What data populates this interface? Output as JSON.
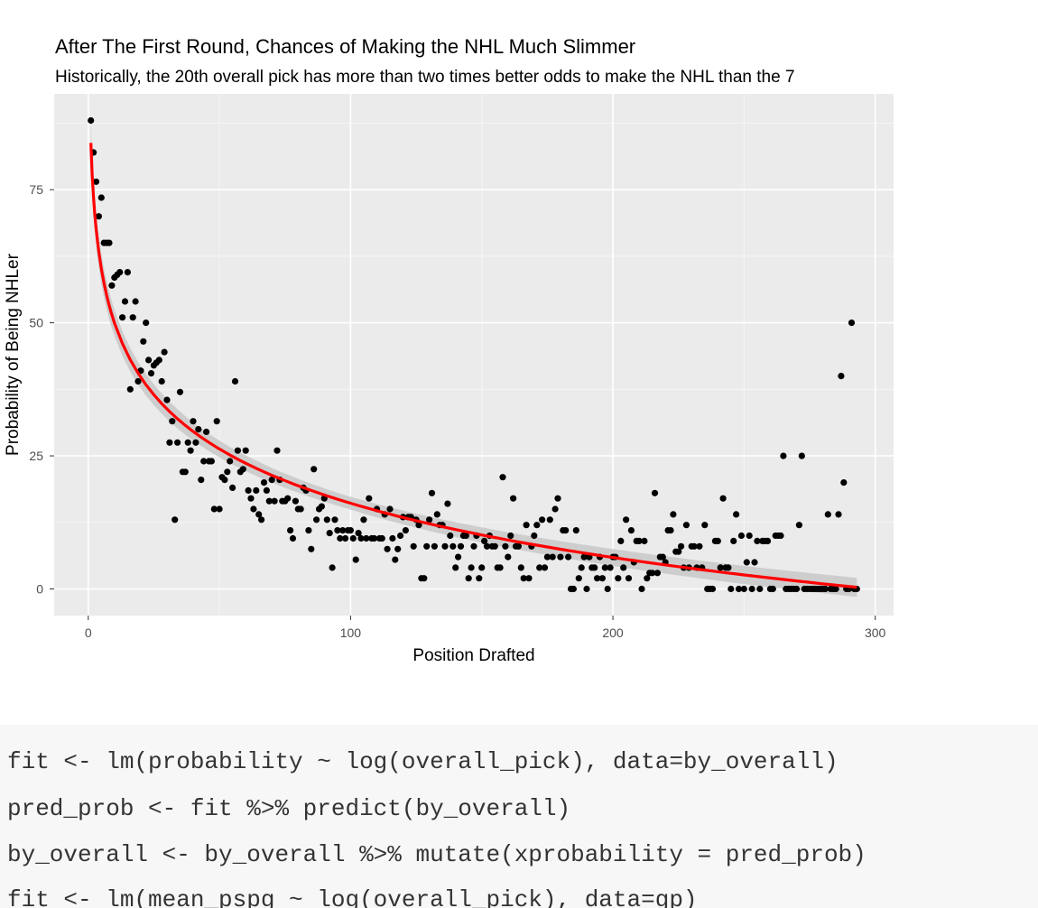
{
  "chart_data": {
    "type": "scatter",
    "title": "After The First Round, Chances of Making the NHL Much Slimmer",
    "subtitle": "Historically, the 20th overall pick has more than two times better odds to make the NHL than the 7",
    "xlabel": "Position Drafted",
    "ylabel": "Probability of Being NHLer",
    "xlim": [
      -13,
      307
    ],
    "ylim": [
      -5,
      93
    ],
    "x_ticks": [
      0,
      100,
      200,
      300
    ],
    "y_ticks": [
      0,
      25,
      50,
      75
    ],
    "grid": true,
    "background": "#ebebeb",
    "point_color": "#000000",
    "fit_color": "#ff0000",
    "fit_band_color": "#c8c8c8",
    "fit": {
      "model": "lm(y ~ log(x))",
      "intercept": 83.8,
      "slope": -14.7,
      "x_range": [
        1,
        293
      ]
    },
    "series": [
      {
        "points": [
          [
            1,
            88
          ],
          [
            2,
            82
          ],
          [
            3,
            76.5
          ],
          [
            4,
            70
          ],
          [
            5,
            73.5
          ],
          [
            6,
            65
          ],
          [
            7,
            65
          ],
          [
            8,
            65
          ],
          [
            9,
            57
          ],
          [
            10,
            58.5
          ],
          [
            11,
            59
          ],
          [
            12,
            59.5
          ],
          [
            13,
            51
          ],
          [
            14,
            54
          ],
          [
            15,
            59.5
          ],
          [
            16,
            37.5
          ],
          [
            17,
            51
          ],
          [
            18,
            54
          ],
          [
            19,
            39
          ],
          [
            20,
            41
          ],
          [
            21,
            46.5
          ],
          [
            22,
            50
          ],
          [
            23,
            43
          ],
          [
            24,
            40.5
          ],
          [
            25,
            42
          ],
          [
            26,
            42.5
          ],
          [
            27,
            43
          ],
          [
            28,
            39
          ],
          [
            29,
            44.5
          ],
          [
            30,
            35.5
          ],
          [
            31,
            27.5
          ],
          [
            32,
            31.5
          ],
          [
            33,
            13
          ],
          [
            34,
            27.5
          ],
          [
            35,
            37
          ],
          [
            36,
            22
          ],
          [
            37,
            22
          ],
          [
            38,
            27.5
          ],
          [
            39,
            26
          ],
          [
            40,
            31.5
          ],
          [
            41,
            27.5
          ],
          [
            42,
            30
          ],
          [
            43,
            20.5
          ],
          [
            44,
            24
          ],
          [
            45,
            29.5
          ],
          [
            46,
            24
          ],
          [
            47,
            24
          ],
          [
            48,
            15
          ],
          [
            49,
            31.5
          ],
          [
            50,
            15
          ],
          [
            51,
            21
          ],
          [
            52,
            20.5
          ],
          [
            53,
            22
          ],
          [
            54,
            24
          ],
          [
            55,
            19
          ],
          [
            56,
            39
          ],
          [
            57,
            26
          ],
          [
            58,
            22
          ],
          [
            59,
            22.5
          ],
          [
            60,
            26
          ],
          [
            61,
            18.5
          ],
          [
            62,
            17
          ],
          [
            63,
            15
          ],
          [
            64,
            18.5
          ],
          [
            65,
            14
          ],
          [
            66,
            13
          ],
          [
            67,
            20
          ],
          [
            68,
            18.5
          ],
          [
            69,
            16.5
          ],
          [
            70,
            20.5
          ],
          [
            71,
            16.5
          ],
          [
            72,
            26
          ],
          [
            73,
            20.5
          ],
          [
            74,
            16.5
          ],
          [
            75,
            16.5
          ],
          [
            76,
            17
          ],
          [
            77,
            11
          ],
          [
            78,
            9.5
          ],
          [
            79,
            16.5
          ],
          [
            80,
            15
          ],
          [
            81,
            15
          ],
          [
            82,
            19
          ],
          [
            83,
            18.5
          ],
          [
            84,
            11
          ],
          [
            85,
            7.5
          ],
          [
            86,
            22.5
          ],
          [
            87,
            13
          ],
          [
            88,
            15
          ],
          [
            89,
            15.5
          ],
          [
            90,
            17
          ],
          [
            91,
            13
          ],
          [
            92,
            10.5
          ],
          [
            93,
            4
          ],
          [
            94,
            13
          ],
          [
            95,
            11
          ],
          [
            96,
            9.5
          ],
          [
            97,
            11
          ],
          [
            98,
            9.5
          ],
          [
            99,
            11
          ],
          [
            100,
            11
          ],
          [
            101,
            9.5
          ],
          [
            102,
            5.5
          ],
          [
            103,
            10.5
          ],
          [
            104,
            9.5
          ],
          [
            105,
            13
          ],
          [
            106,
            9.5
          ],
          [
            107,
            17
          ],
          [
            108,
            9.5
          ],
          [
            109,
            9.5
          ],
          [
            110,
            15
          ],
          [
            111,
            9.5
          ],
          [
            112,
            9.5
          ],
          [
            113,
            14
          ],
          [
            114,
            7.5
          ],
          [
            115,
            15
          ],
          [
            116,
            9.5
          ],
          [
            117,
            5.5
          ],
          [
            118,
            7.5
          ],
          [
            119,
            10
          ],
          [
            120,
            13.5
          ],
          [
            121,
            11
          ],
          [
            122,
            13.5
          ],
          [
            123,
            13.5
          ],
          [
            124,
            8
          ],
          [
            125,
            13
          ],
          [
            126,
            12
          ],
          [
            127,
            2
          ],
          [
            128,
            2
          ],
          [
            129,
            8
          ],
          [
            130,
            13
          ],
          [
            131,
            18
          ],
          [
            132,
            8
          ],
          [
            133,
            14
          ],
          [
            134,
            12
          ],
          [
            135,
            12
          ],
          [
            136,
            8
          ],
          [
            137,
            16
          ],
          [
            138,
            10
          ],
          [
            139,
            8
          ],
          [
            140,
            4
          ],
          [
            141,
            6
          ],
          [
            142,
            8
          ],
          [
            143,
            10
          ],
          [
            144,
            10
          ],
          [
            145,
            2
          ],
          [
            146,
            4
          ],
          [
            147,
            8
          ],
          [
            148,
            10
          ],
          [
            149,
            2
          ],
          [
            150,
            4
          ],
          [
            151,
            9
          ],
          [
            152,
            8
          ],
          [
            153,
            10
          ],
          [
            154,
            8
          ],
          [
            155,
            8
          ],
          [
            156,
            4
          ],
          [
            157,
            4
          ],
          [
            158,
            21
          ],
          [
            159,
            8
          ],
          [
            160,
            6
          ],
          [
            161,
            10
          ],
          [
            162,
            17
          ],
          [
            163,
            8
          ],
          [
            164,
            8
          ],
          [
            165,
            4
          ],
          [
            166,
            2
          ],
          [
            167,
            12
          ],
          [
            168,
            2
          ],
          [
            169,
            8
          ],
          [
            170,
            10
          ],
          [
            171,
            12
          ],
          [
            172,
            4
          ],
          [
            173,
            13
          ],
          [
            174,
            4
          ],
          [
            175,
            6
          ],
          [
            176,
            13
          ],
          [
            177,
            6
          ],
          [
            178,
            15
          ],
          [
            179,
            17
          ],
          [
            180,
            6
          ],
          [
            181,
            11
          ],
          [
            182,
            11
          ],
          [
            183,
            6
          ],
          [
            184,
            0
          ],
          [
            185,
            0
          ],
          [
            186,
            11
          ],
          [
            187,
            2
          ],
          [
            188,
            4
          ],
          [
            189,
            6
          ],
          [
            190,
            0
          ],
          [
            191,
            6
          ],
          [
            192,
            4
          ],
          [
            193,
            4
          ],
          [
            194,
            2
          ],
          [
            195,
            6
          ],
          [
            196,
            2
          ],
          [
            197,
            4
          ],
          [
            198,
            0
          ],
          [
            199,
            4
          ],
          [
            200,
            6
          ],
          [
            201,
            6
          ],
          [
            202,
            2
          ],
          [
            203,
            9
          ],
          [
            204,
            4
          ],
          [
            205,
            13
          ],
          [
            206,
            2
          ],
          [
            207,
            11
          ],
          [
            208,
            5
          ],
          [
            209,
            9
          ],
          [
            210,
            9
          ],
          [
            211,
            0
          ],
          [
            212,
            9
          ],
          [
            213,
            2
          ],
          [
            214,
            3
          ],
          [
            215,
            3
          ],
          [
            216,
            18
          ],
          [
            217,
            3
          ],
          [
            218,
            6
          ],
          [
            219,
            6
          ],
          [
            220,
            5
          ],
          [
            221,
            11
          ],
          [
            222,
            11
          ],
          [
            223,
            14
          ],
          [
            224,
            7
          ],
          [
            225,
            7
          ],
          [
            226,
            8
          ],
          [
            227,
            4
          ],
          [
            228,
            12
          ],
          [
            229,
            4
          ],
          [
            230,
            8
          ],
          [
            231,
            8
          ],
          [
            232,
            4
          ],
          [
            233,
            8
          ],
          [
            234,
            4
          ],
          [
            235,
            12
          ],
          [
            236,
            0
          ],
          [
            237,
            0
          ],
          [
            238,
            0
          ],
          [
            239,
            9
          ],
          [
            240,
            9
          ],
          [
            241,
            4
          ],
          [
            242,
            17
          ],
          [
            243,
            4
          ],
          [
            244,
            4
          ],
          [
            245,
            0
          ],
          [
            246,
            9
          ],
          [
            247,
            14
          ],
          [
            248,
            0
          ],
          [
            249,
            10
          ],
          [
            250,
            0
          ],
          [
            251,
            5
          ],
          [
            252,
            10
          ],
          [
            253,
            0
          ],
          [
            254,
            5
          ],
          [
            255,
            9
          ],
          [
            256,
            0
          ],
          [
            257,
            9
          ],
          [
            258,
            9
          ],
          [
            259,
            9
          ],
          [
            260,
            0
          ],
          [
            261,
            0
          ],
          [
            262,
            10
          ],
          [
            263,
            10
          ],
          [
            264,
            10
          ],
          [
            265,
            25
          ],
          [
            266,
            0
          ],
          [
            267,
            0
          ],
          [
            268,
            0
          ],
          [
            269,
            0
          ],
          [
            270,
            0
          ],
          [
            271,
            12
          ],
          [
            272,
            25
          ],
          [
            273,
            0
          ],
          [
            274,
            0
          ],
          [
            275,
            0
          ],
          [
            276,
            0
          ],
          [
            277,
            0
          ],
          [
            278,
            0
          ],
          [
            279,
            0
          ],
          [
            280,
            0
          ],
          [
            281,
            0
          ],
          [
            282,
            14
          ],
          [
            283,
            0
          ],
          [
            284,
            0
          ],
          [
            285,
            0
          ],
          [
            286,
            14
          ],
          [
            287,
            40
          ],
          [
            288,
            20
          ],
          [
            289,
            0
          ],
          [
            290,
            0
          ],
          [
            291,
            50
          ],
          [
            292,
            0
          ],
          [
            293,
            0
          ]
        ]
      }
    ]
  },
  "code": {
    "lines": [
      "fit <- lm(probability ~ log(overall_pick), data=by_overall)",
      "pred_prob <- fit %>% predict(by_overall)",
      "by_overall <- by_overall %>% mutate(xprobability = pred_prob)",
      "fit <- lm(mean_pspg ~ log(overall_pick), data=gp)"
    ]
  }
}
